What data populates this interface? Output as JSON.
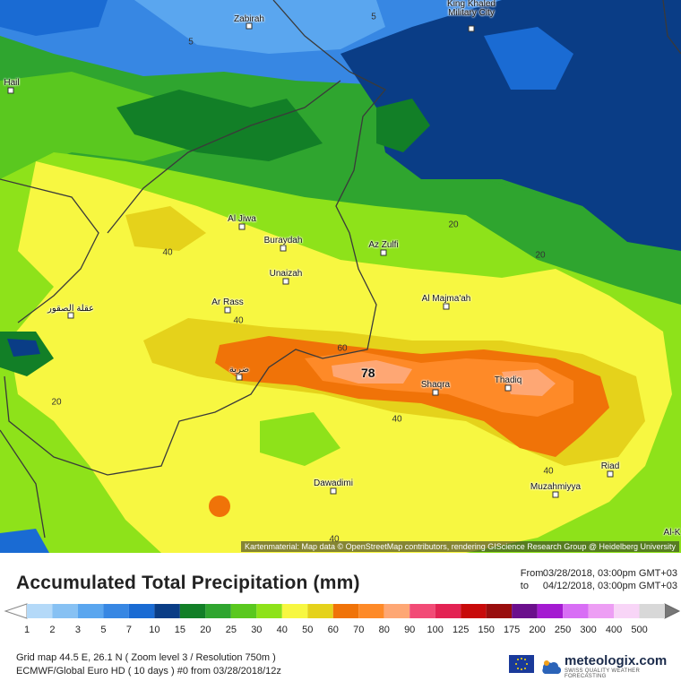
{
  "map": {
    "cities": [
      {
        "name": "Zabirah"
      },
      {
        "name": "King Khaled Military City"
      },
      {
        "name": "Hail"
      },
      {
        "name": "Al Jiwa"
      },
      {
        "name": "Buraydah"
      },
      {
        "name": "Az Zulfi"
      },
      {
        "name": "Unaizah"
      },
      {
        "name": "Ar Rass"
      },
      {
        "name": "Al Majma'ah"
      },
      {
        "name": "عقلة الصقور"
      },
      {
        "name": "ضرية"
      },
      {
        "name": "Shaqra"
      },
      {
        "name": "Thadiq"
      },
      {
        "name": "Riad"
      },
      {
        "name": "Dawadimi"
      },
      {
        "name": "Muzahmiyya"
      },
      {
        "name": "Al-K"
      }
    ],
    "contour_labels": [
      "5",
      "5",
      "20",
      "20",
      "40",
      "40",
      "60",
      "40",
      "20",
      "40",
      "40"
    ],
    "max_value": "78",
    "attribution": "Kartenmaterial: Map data © OpenStreetMap contributors, rendering GIScience Research Group @ Heidelberg University"
  },
  "legend": {
    "title": "Accumulated Total Precipitation (mm)",
    "from_label": "From",
    "from_value": "03/28/2018, 03:00pm GMT+03",
    "to_label": "to",
    "to_value": "04/12/2018, 03:00pm GMT+03",
    "scale_values": [
      "1",
      "2",
      "3",
      "5",
      "7",
      "10",
      "15",
      "20",
      "25",
      "30",
      "40",
      "50",
      "60",
      "70",
      "80",
      "90",
      "100",
      "125",
      "150",
      "175",
      "200",
      "250",
      "300",
      "400",
      "500"
    ],
    "scale_colors": [
      "#b4d9f8",
      "#87c1f3",
      "#5aa6ef",
      "#3787e3",
      "#1a6bd3",
      "#0a3d86",
      "#127f27",
      "#2fa52f",
      "#5ac81f",
      "#8ee21a",
      "#f7f741",
      "#e5d21b",
      "#f07308",
      "#fe8a28",
      "#fea774",
      "#f24b76",
      "#e32353",
      "#c80a0a",
      "#990d0d",
      "#6b0f8c",
      "#a41bd1",
      "#d86ef5",
      "#ed9ef4",
      "#f8d5f7",
      "#d8d8d8"
    ],
    "info_line1": "Grid map 44.5 E, 26.1 N ( Zoom level 3 / Resolution 750m )",
    "info_line2": "ECMWF/Global Euro HD ( 10 days ) #0 from  03/28/2018/12z",
    "brand": "meteologix.com",
    "brand_tagline": "SWISS QUALITY WEATHER FORECASTING"
  }
}
